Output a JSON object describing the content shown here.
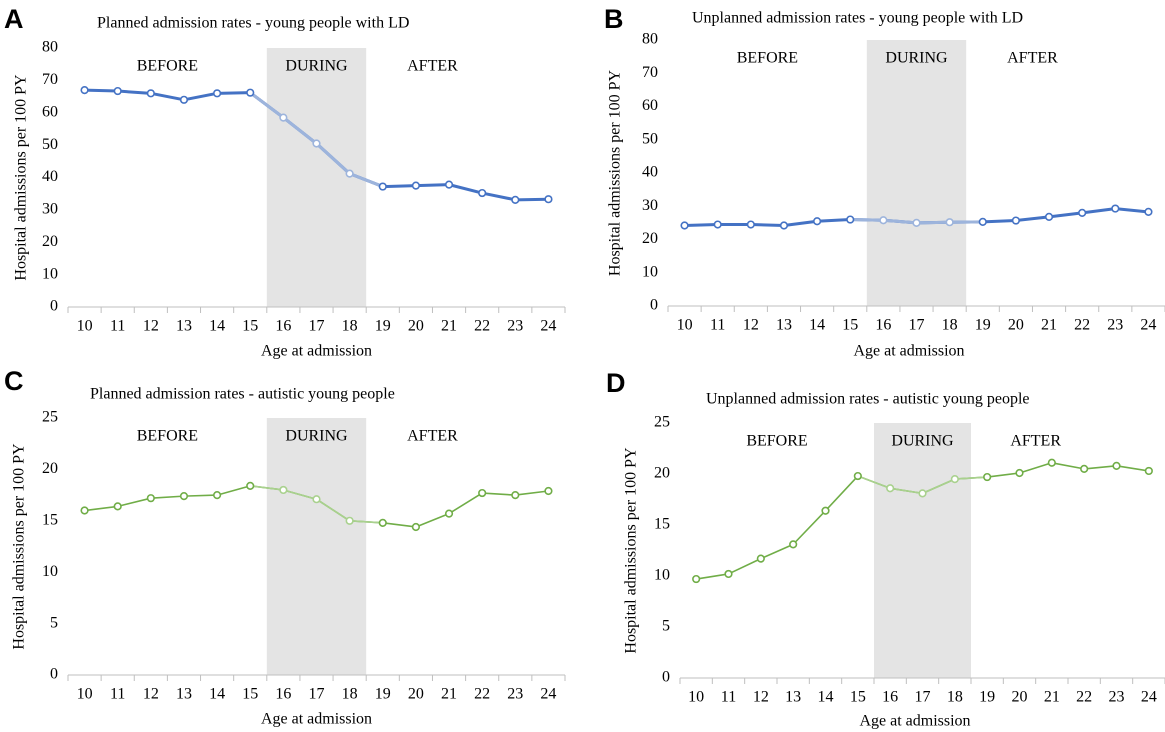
{
  "chart_data": [
    {
      "type": "line",
      "panel": "A",
      "title": "Planned admission rates - young people with LD",
      "y_label": "Hospital admissions per 100 PY",
      "x_label": "Age at admission",
      "categories": [
        "10",
        "11",
        "12",
        "13",
        "14",
        "15",
        "16",
        "17",
        "18",
        "19",
        "20",
        "21",
        "22",
        "23",
        "24"
      ],
      "series": [
        {
          "color": "#4472c4",
          "values": [
            67,
            66.7,
            66,
            64,
            66,
            66.2,
            58.5,
            50.5,
            41.2,
            37.2,
            37.5,
            37.8,
            35.2,
            33.1,
            33.3
          ]
        }
      ],
      "ylim": [
        0,
        80
      ],
      "yticks": [
        0,
        10,
        20,
        30,
        40,
        50,
        60,
        70,
        80
      ],
      "annotations": [
        "BEFORE",
        "DURING",
        "AFTER"
      ],
      "shade": {
        "from": "16",
        "to": "18",
        "color": "#e4e4e4",
        "line_color": "#9db4dc"
      }
    },
    {
      "type": "line",
      "panel": "B",
      "title": "Unplanned admission rates - young people with LD",
      "y_label": "Hospital admissions per 100 PY",
      "x_label": "Age at admission",
      "categories": [
        "10",
        "11",
        "12",
        "13",
        "14",
        "15",
        "16",
        "17",
        "18",
        "19",
        "20",
        "21",
        "22",
        "23",
        "24"
      ],
      "series": [
        {
          "color": "#4472c4",
          "values": [
            24.2,
            24.5,
            24.5,
            24.2,
            25.5,
            26,
            25.8,
            25,
            25.2,
            25.3,
            25.7,
            26.8,
            28,
            29.3,
            28.3
          ]
        }
      ],
      "ylim": [
        0,
        80
      ],
      "yticks": [
        0,
        10,
        20,
        30,
        40,
        50,
        60,
        70,
        80
      ],
      "annotations": [
        "BEFORE",
        "DURING",
        "AFTER"
      ],
      "shade": {
        "from": "16",
        "to": "18",
        "color": "#e4e4e4",
        "line_color": "#9db4dc"
      }
    },
    {
      "type": "line",
      "panel": "C",
      "title": "Planned admission rates - autistic young people",
      "y_label": "Hospital admissions per 100 PY",
      "x_label": "Age at admission",
      "categories": [
        "10",
        "11",
        "12",
        "13",
        "14",
        "15",
        "16",
        "17",
        "18",
        "19",
        "20",
        "21",
        "22",
        "23",
        "24"
      ],
      "series": [
        {
          "color": "#70ad47",
          "values": [
            16,
            16.4,
            17.2,
            17.4,
            17.5,
            18.4,
            18,
            17.1,
            15,
            14.8,
            14.4,
            15.7,
            17.7,
            17.5,
            17.9
          ]
        }
      ],
      "ylim": [
        0,
        25
      ],
      "yticks": [
        0,
        5,
        10,
        15,
        20,
        25
      ],
      "annotations": [
        "BEFORE",
        "DURING",
        "AFTER"
      ],
      "shade": {
        "from": "16",
        "to": "18",
        "color": "#e4e4e4",
        "line_color": "#a9d18e"
      }
    },
    {
      "type": "line",
      "panel": "D",
      "title": "Unplanned admission rates - autistic young people",
      "y_label": "Hospital admissions per 100 PY",
      "x_label": "Age at admission",
      "categories": [
        "10",
        "11",
        "12",
        "13",
        "14",
        "15",
        "16",
        "17",
        "18",
        "19",
        "20",
        "21",
        "22",
        "23",
        "24"
      ],
      "series": [
        {
          "color": "#70ad47",
          "values": [
            9.7,
            10.2,
            11.7,
            13.1,
            16.4,
            19.8,
            18.6,
            18.1,
            19.5,
            19.7,
            20.1,
            21.1,
            20.5,
            20.8,
            20.3
          ]
        }
      ],
      "ylim": [
        0,
        25
      ],
      "yticks": [
        0,
        5,
        10,
        15,
        20,
        25
      ],
      "annotations": [
        "BEFORE",
        "DURING",
        "AFTER"
      ],
      "shade": {
        "from": "16",
        "to": "18",
        "color": "#e4e4e4",
        "line_color": "#a9d18e"
      }
    }
  ]
}
